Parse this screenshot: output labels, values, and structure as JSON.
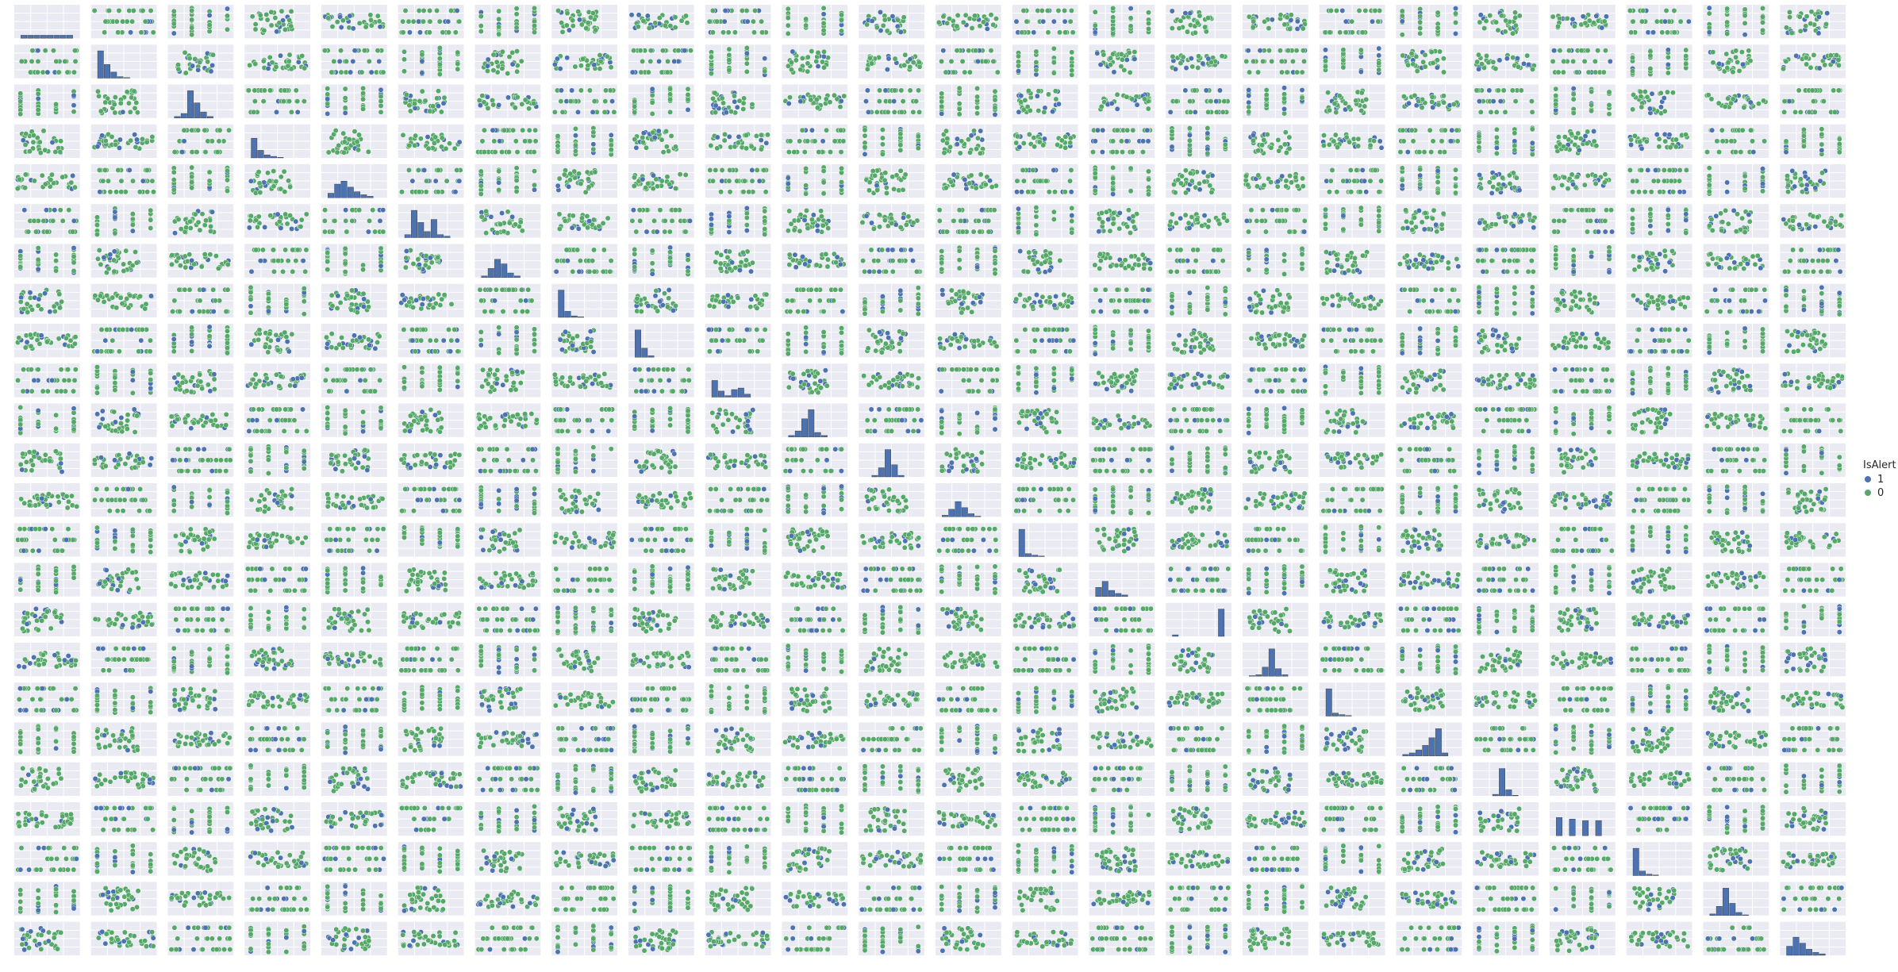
{
  "chart_data": {
    "type": "scatter",
    "subtype": "pairplot",
    "grid_size": 24,
    "diag_kind": "hist",
    "background": "#eaeaf2",
    "grid": true,
    "hue": "IsAlert",
    "legend": {
      "title": "IsAlert",
      "placement": "right",
      "entries": [
        {
          "label": "1",
          "color": "#4c72b0"
        },
        {
          "label": "0",
          "color": "#55a868"
        }
      ]
    },
    "series": [
      {
        "name": "1",
        "color": "#4c72b0"
      },
      {
        "name": "0",
        "color": "#55a868"
      }
    ],
    "diag_hist_bins": [
      [
        0.1,
        0.1,
        0.1,
        0.1,
        0.1,
        0.1,
        0.1,
        0.1
      ],
      [
        0.9,
        0.45,
        0.2,
        0.05,
        0.02,
        0,
        0,
        0
      ],
      [
        0.05,
        0.15,
        0.9,
        0.5,
        0.2,
        0.05,
        0,
        0
      ],
      [
        0.65,
        0.25,
        0.1,
        0.05,
        0.02,
        0,
        0,
        0
      ],
      [
        0.15,
        0.45,
        0.55,
        0.35,
        0.2,
        0.1,
        0.05,
        0
      ],
      [
        0.1,
        0.9,
        0.5,
        0.2,
        0.6,
        0.1,
        0.05,
        0
      ],
      [
        0.05,
        0.3,
        0.6,
        0.45,
        0.15,
        0.05,
        0,
        0
      ],
      [
        0.9,
        0.2,
        0.05,
        0.02,
        0,
        0,
        0,
        0
      ],
      [
        0.9,
        0.3,
        0.05,
        0,
        0,
        0,
        0,
        0
      ],
      [
        0.55,
        0.2,
        0.05,
        0.25,
        0.3,
        0.1,
        0,
        0
      ],
      [
        0.05,
        0.2,
        0.6,
        0.9,
        0.15,
        0.05,
        0,
        0
      ],
      [
        0,
        0.05,
        0.3,
        0.9,
        0.4,
        0.05,
        0,
        0
      ],
      [
        0.05,
        0.25,
        0.5,
        0.3,
        0.1,
        0.02,
        0,
        0
      ],
      [
        0.9,
        0.1,
        0.05,
        0.02,
        0,
        0,
        0,
        0
      ],
      [
        0.3,
        0.5,
        0.2,
        0.1,
        0.05,
        0,
        0,
        0
      ],
      [
        0.05,
        0,
        0,
        0,
        0,
        0,
        0,
        0.9
      ],
      [
        0.02,
        0.05,
        0.3,
        0.9,
        0.25,
        0.05,
        0,
        0
      ],
      [
        0.9,
        0.1,
        0.05,
        0.02,
        0,
        0,
        0,
        0
      ],
      [
        0.05,
        0.1,
        0.2,
        0.35,
        0.6,
        0.9,
        0.1,
        0
      ],
      [
        0,
        0,
        0.05,
        0.9,
        0.2,
        0.02,
        0,
        0
      ],
      [
        0.6,
        0,
        0.55,
        0,
        0.5,
        0,
        0.5,
        0
      ],
      [
        0.9,
        0.15,
        0.05,
        0.02,
        0,
        0,
        0,
        0
      ],
      [
        0.05,
        0.3,
        0.9,
        0.4,
        0.1,
        0.02,
        0,
        0
      ],
      [
        0.3,
        0.6,
        0.4,
        0.2,
        0.1,
        0.05,
        0,
        0
      ]
    ]
  }
}
